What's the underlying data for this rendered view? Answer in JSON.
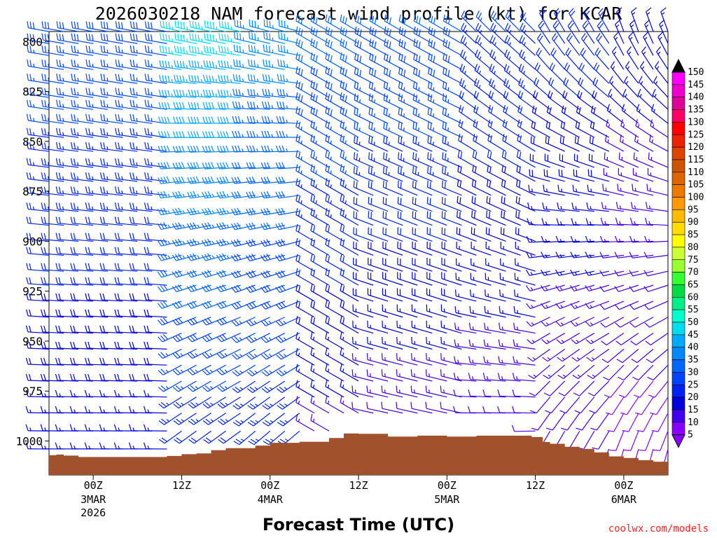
{
  "chart_data": {
    "type": "wind-barb-profile",
    "title": "2026030218 NAM forecast wind profile (kt) for KCAR",
    "xlabel": "Forecast Time (UTC)",
    "credit": "coolwx.com/models",
    "y_axis": {
      "direction": "inverted",
      "ticks": [
        "800",
        "825",
        "850",
        "875",
        "900",
        "925",
        "950",
        "975",
        "1000"
      ],
      "ylim": [
        795,
        1017
      ]
    },
    "x_axis": {
      "unit": "forecast hour",
      "xlim": [
        -6,
        78
      ],
      "ticks": [
        {
          "hour": 0,
          "label": "00Z",
          "sub": [
            "3MAR",
            "2026"
          ]
        },
        {
          "hour": 12,
          "label": "12Z",
          "sub": []
        },
        {
          "hour": 24,
          "label": "00Z",
          "sub": [
            "4MAR"
          ]
        },
        {
          "hour": 36,
          "label": "12Z",
          "sub": []
        },
        {
          "hour": 48,
          "label": "00Z",
          "sub": [
            "5MAR"
          ]
        },
        {
          "hour": 60,
          "label": "12Z",
          "sub": []
        },
        {
          "hour": 72,
          "label": "00Z",
          "sub": [
            "6MAR"
          ]
        }
      ]
    },
    "colorbar": {
      "labels": [
        "150",
        "145",
        "140",
        "135",
        "130",
        "125",
        "120",
        "115",
        "110",
        "105",
        "100",
        "95",
        "90",
        "85",
        "80",
        "75",
        "70",
        "65",
        "60",
        "55",
        "50",
        "45",
        "40",
        "35",
        "30",
        "25",
        "20",
        "15",
        "10",
        "5"
      ],
      "colors": [
        "#000000",
        "#ff00ff",
        "#ee00cc",
        "#dd0099",
        "#ff0066",
        "#ff0000",
        "#ee2200",
        "#dd4400",
        "#cc5500",
        "#dd6600",
        "#ee7700",
        "#ff9900",
        "#ffbb00",
        "#ffdd00",
        "#ffff00",
        "#ccff33",
        "#99ff33",
        "#33ff33",
        "#00dd44",
        "#00ee88",
        "#00ffcc",
        "#00ddee",
        "#00aaff",
        "#0088ff",
        "#0066ff",
        "#0044ff",
        "#0022ee",
        "#0000dd",
        "#4400ee",
        "#8800ff"
      ]
    },
    "terrain": {
      "color": "#a0522d",
      "surface_pressure": [
        {
          "hour": -6,
          "p": 1007.1
        },
        {
          "hour": -5,
          "p": 1006.8
        },
        {
          "hour": -4,
          "p": 1007.3
        },
        {
          "hour": -2,
          "p": 1008
        },
        {
          "hour": 8,
          "p": 1008
        },
        {
          "hour": 10,
          "p": 1007.5
        },
        {
          "hour": 12,
          "p": 1006.6
        },
        {
          "hour": 14,
          "p": 1006.2
        },
        {
          "hour": 16,
          "p": 1004.6
        },
        {
          "hour": 18,
          "p": 1003.6
        },
        {
          "hour": 20,
          "p": 1003.6
        },
        {
          "hour": 22,
          "p": 1002.3
        },
        {
          "hour": 24,
          "p": 1000.9
        },
        {
          "hour": 28,
          "p": 1000.4
        },
        {
          "hour": 32,
          "p": 998.5
        },
        {
          "hour": 34,
          "p": 996.2
        },
        {
          "hour": 36,
          "p": 996.4
        },
        {
          "hour": 40,
          "p": 997.8
        },
        {
          "hour": 44,
          "p": 997.3
        },
        {
          "hour": 48,
          "p": 997.8
        },
        {
          "hour": 52,
          "p": 997.3
        },
        {
          "hour": 58,
          "p": 997.3
        },
        {
          "hour": 59.5,
          "p": 998
        },
        {
          "hour": 61,
          "p": 1000.5
        },
        {
          "hour": 62,
          "p": 1001.4
        },
        {
          "hour": 64,
          "p": 1002.9
        },
        {
          "hour": 66,
          "p": 1004
        },
        {
          "hour": 68,
          "p": 1005.7
        },
        {
          "hour": 70,
          "p": 1007.7
        },
        {
          "hour": 72,
          "p": 1008.5
        },
        {
          "hour": 74,
          "p": 1009.6
        },
        {
          "hour": 76,
          "p": 1010.4
        },
        {
          "hour": 78,
          "p": 1011.6
        }
      ]
    },
    "wind_barbs": {
      "unit": "kt",
      "levels": [
        795,
        801,
        807,
        814,
        821,
        828,
        834,
        841,
        848,
        855,
        863,
        870,
        877,
        885,
        892,
        900,
        907,
        915,
        922,
        930,
        938,
        946,
        954,
        962,
        970,
        978,
        986,
        995,
        1004,
        1012
      ],
      "hours": [
        -6,
        -4,
        -2,
        0,
        2,
        4,
        6,
        8,
        10,
        12,
        14,
        16,
        18,
        20,
        22,
        24,
        26,
        28,
        30,
        32,
        34,
        36,
        38,
        40,
        42,
        44,
        46,
        48,
        50,
        52,
        54,
        56,
        58,
        60,
        62,
        64,
        66,
        68,
        70,
        72,
        74,
        76,
        78
      ],
      "profiles": [
        {
          "hours": [
            -6,
            10
          ],
          "top": {
            "dir": 280,
            "spd": 28
          },
          "bottom": {
            "dir": 270,
            "spd": 15
          }
        },
        {
          "hours": [
            12,
            20
          ],
          "top": {
            "dir": 282,
            "spd": 47
          },
          "bottom": {
            "dir": 230,
            "spd": 20
          }
        },
        {
          "hours": [
            22,
            28
          ],
          "top": {
            "dir": 285,
            "spd": 37
          },
          "bottom": {
            "dir": 225,
            "spd": 22
          }
        },
        {
          "hours": [
            30,
            36
          ],
          "top": {
            "dir": 300,
            "spd": 32
          },
          "bottom": {
            "dir": 300,
            "spd": 12
          }
        },
        {
          "hours": [
            38,
            50
          ],
          "top": {
            "dir": 300,
            "spd": 30
          },
          "bottom": {
            "dir": 280,
            "spd": 10
          }
        },
        {
          "hours": [
            52,
            60
          ],
          "top": {
            "dir": 315,
            "spd": 25
          },
          "bottom": {
            "dir": 265,
            "spd": 10
          }
        },
        {
          "hours": [
            62,
            70
          ],
          "top": {
            "dir": 330,
            "spd": 22
          },
          "bottom": {
            "dir": 200,
            "spd": 10
          }
        },
        {
          "hours": [
            72,
            78
          ],
          "top": {
            "dir": 340,
            "spd": 17
          },
          "bottom": {
            "dir": 190,
            "spd": 8
          }
        }
      ]
    }
  }
}
